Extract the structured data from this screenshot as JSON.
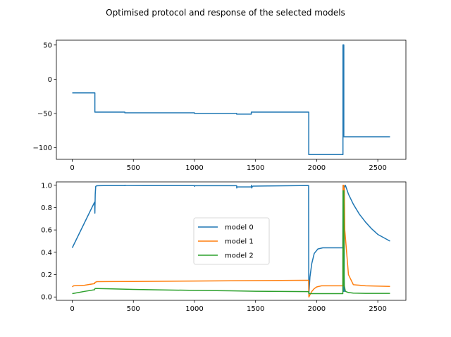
{
  "figure": {
    "title": "Optimised protocol and response of the selected models"
  },
  "chart_data": [
    {
      "type": "line",
      "title": "",
      "xlabel": "",
      "ylabel": "",
      "xlim": [
        -130,
        2730
      ],
      "ylim": [
        -117,
        57
      ],
      "xticks": [
        0,
        500,
        1000,
        1500,
        2000,
        2500
      ],
      "xtick_labels": [
        "0",
        "500",
        "1000",
        "1500",
        "2000",
        "2500"
      ],
      "yticks": [
        50,
        0,
        -50,
        -100
      ],
      "ytick_labels": [
        "50",
        "0",
        "−50",
        "−100"
      ],
      "grid": false,
      "series": [
        {
          "name": "",
          "color": "#1f77b4",
          "x": [
            0,
            185,
            185,
            430,
            430,
            1000,
            1000,
            1345,
            1345,
            1465,
            1465,
            1935,
            1935,
            2215,
            2215,
            2222,
            2222,
            2228,
            2228,
            2600
          ],
          "y": [
            -20,
            -20,
            -48,
            -48,
            -49,
            -49,
            -50,
            -50,
            -51,
            -51,
            -48,
            -48,
            -110,
            -110,
            50,
            50,
            -84,
            -84,
            -84,
            -84
          ]
        }
      ]
    },
    {
      "type": "line",
      "title": "",
      "xlabel": "",
      "ylabel": "",
      "xlim": [
        -130,
        2730
      ],
      "ylim": [
        -0.03,
        1.03
      ],
      "xticks": [
        0,
        500,
        1000,
        1500,
        2000,
        2500
      ],
      "xtick_labels": [
        "0",
        "500",
        "1000",
        "1500",
        "2000",
        "2500"
      ],
      "yticks": [
        0.0,
        0.2,
        0.4,
        0.6,
        0.8,
        1.0
      ],
      "ytick_labels": [
        "0.0",
        "0.2",
        "0.4",
        "0.6",
        "0.8",
        "1.0"
      ],
      "grid": false,
      "legend": {
        "placement": "center",
        "entries": [
          "model 0",
          "model 1",
          "model 2"
        ]
      },
      "series": [
        {
          "name": "model 0",
          "color": "#1f77b4",
          "x": [
            0,
            183,
            185,
            188,
            192,
            200,
            215,
            260,
            330,
            430,
            432,
            433,
            600,
            1000,
            1001,
            1003,
            1345,
            1346,
            1347,
            1465,
            1466,
            1468,
            1475,
            1480,
            1600,
            1800,
            1934,
            1935,
            1936,
            1945,
            1960,
            1980,
            2010,
            2050,
            2100,
            2214,
            2215,
            2216,
            2218,
            2220,
            2222,
            2223,
            2225,
            2226,
            2235,
            2260,
            2300,
            2350,
            2400,
            2450,
            2500,
            2550,
            2600
          ],
          "y": [
            0.44,
            0.85,
            0.75,
            0.92,
            0.99,
            0.995,
            0.996,
            0.997,
            0.997,
            0.997,
            1.0,
            0.998,
            0.997,
            0.997,
            0.99,
            0.996,
            0.996,
            0.975,
            0.985,
            0.985,
            1.0,
            0.975,
            0.99,
            0.992,
            0.994,
            0.996,
            0.998,
            0.05,
            0.02,
            0.18,
            0.3,
            0.39,
            0.43,
            0.44,
            0.44,
            0.44,
            0.95,
            1.0,
            0.1,
            0.05,
            1.0,
            0.95,
            0.05,
            0.98,
            1.0,
            0.92,
            0.83,
            0.74,
            0.67,
            0.61,
            0.56,
            0.53,
            0.5
          ]
        },
        {
          "name": "model 1",
          "color": "#ff7f0e",
          "x": [
            0,
            10,
            100,
            183,
            186,
            200,
            300,
            500,
            800,
            1000,
            1300,
            1500,
            1700,
            1934,
            1936,
            1945,
            1960,
            1980,
            2000,
            2040,
            2100,
            2214,
            2216,
            2218,
            2220,
            2222,
            2224,
            2226,
            2230,
            2260,
            2300,
            2400,
            2600
          ],
          "y": [
            0.09,
            0.1,
            0.105,
            0.12,
            0.13,
            0.137,
            0.138,
            0.139,
            0.141,
            0.143,
            0.145,
            0.147,
            0.148,
            0.15,
            0.0,
            0.02,
            0.05,
            0.075,
            0.09,
            0.1,
            0.1,
            0.1,
            1.0,
            0.1,
            0.1,
            1.0,
            0.4,
            0.97,
            0.6,
            0.2,
            0.11,
            0.1,
            0.095
          ]
        },
        {
          "name": "model 2",
          "color": "#2ca02c",
          "x": [
            0,
            100,
            183,
            186,
            200,
            300,
            500,
            700,
            1000,
            1300,
            1500,
            1934,
            1936,
            2000,
            2214,
            2216,
            2218,
            2222,
            2224,
            2226,
            2235,
            2260,
            2300,
            2400,
            2600
          ],
          "y": [
            0.03,
            0.05,
            0.065,
            0.076,
            0.076,
            0.073,
            0.068,
            0.064,
            0.059,
            0.055,
            0.051,
            0.048,
            0.03,
            0.03,
            0.03,
            0.95,
            0.1,
            0.95,
            0.2,
            0.1,
            0.05,
            0.04,
            0.035,
            0.032,
            0.032
          ]
        }
      ]
    }
  ]
}
